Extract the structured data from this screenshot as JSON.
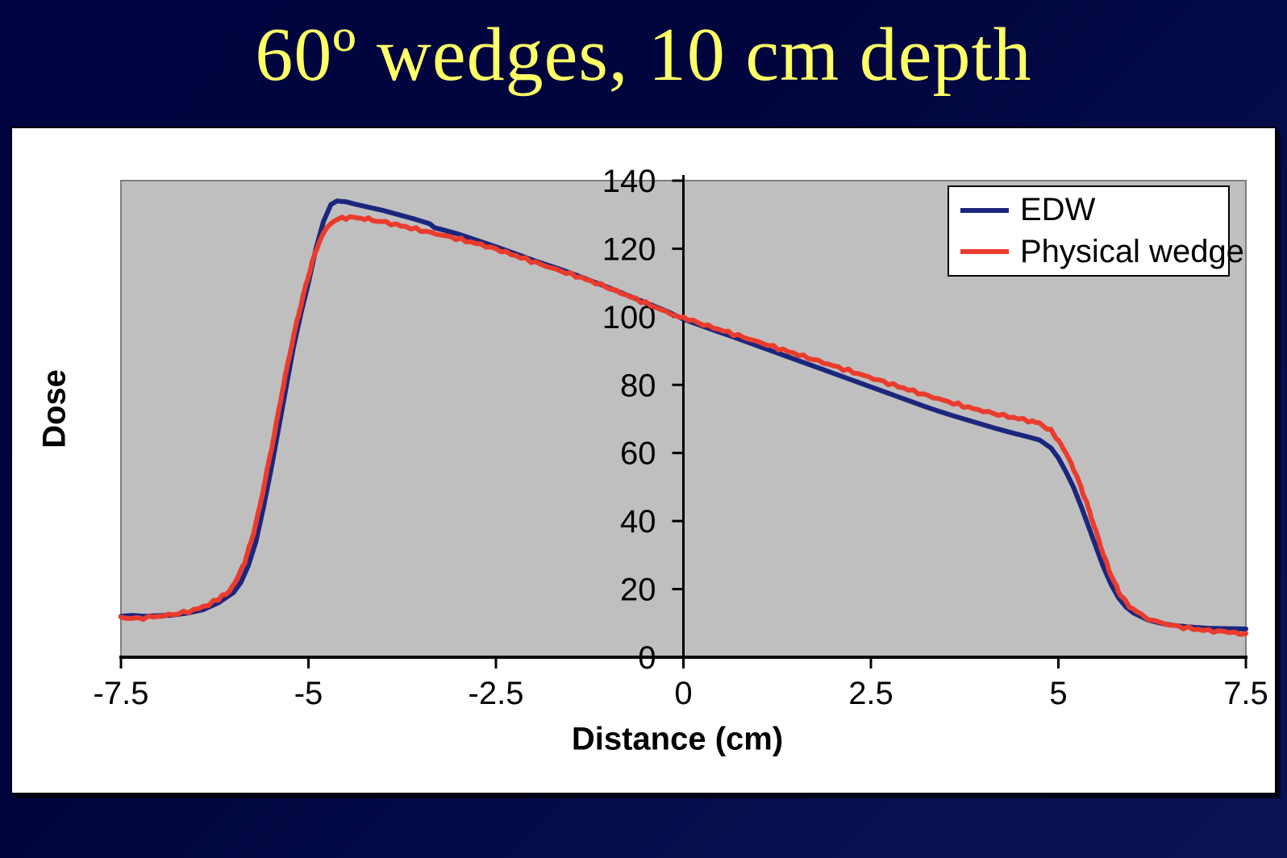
{
  "slide": {
    "title": "60º wedges, 10 cm depth",
    "title_color": "#ffff66"
  },
  "chart_data": {
    "type": "line",
    "title": "",
    "xlabel": "Distance (cm)",
    "ylabel": "Dose",
    "xlim": [
      -7.5,
      7.5
    ],
    "ylim": [
      0,
      140
    ],
    "x_ticks": [
      -7.5,
      -5,
      -2.5,
      0,
      2.5,
      5,
      7.5
    ],
    "x_tick_labels": [
      "-7.5",
      "-5",
      "-2.5",
      "0",
      "2.5",
      "5",
      "7.5"
    ],
    "y_ticks": [
      0,
      20,
      40,
      60,
      80,
      100,
      120,
      140
    ],
    "y_tick_labels": [
      "0",
      "20",
      "40",
      "60",
      "80",
      "100",
      "120",
      "140"
    ],
    "grid": false,
    "plot_bg": "#bfbfbf",
    "plot_border": "#7e7e7e",
    "axis_color": "#000000",
    "legend_position": "top-right",
    "series": [
      {
        "name": "EDW",
        "color": "#1b267e",
        "points": [
          [
            -7.5,
            12
          ],
          [
            -7.35,
            12.3
          ],
          [
            -7.2,
            12
          ],
          [
            -7.0,
            12.2
          ],
          [
            -6.8,
            12.4
          ],
          [
            -6.6,
            13
          ],
          [
            -6.4,
            14
          ],
          [
            -6.2,
            16
          ],
          [
            -6.0,
            19
          ],
          [
            -5.9,
            22
          ],
          [
            -5.8,
            27
          ],
          [
            -5.7,
            34
          ],
          [
            -5.6,
            44
          ],
          [
            -5.5,
            55
          ],
          [
            -5.4,
            67
          ],
          [
            -5.3,
            79
          ],
          [
            -5.2,
            91
          ],
          [
            -5.1,
            101
          ],
          [
            -5.0,
            110
          ],
          [
            -4.9,
            120
          ],
          [
            -4.8,
            128
          ],
          [
            -4.7,
            133
          ],
          [
            -4.62,
            134
          ],
          [
            -4.5,
            133.8
          ],
          [
            -4.4,
            133.2
          ],
          [
            -4.2,
            132.2
          ],
          [
            -4.0,
            131.2
          ],
          [
            -3.8,
            130
          ],
          [
            -3.6,
            128.8
          ],
          [
            -3.45,
            127.8
          ],
          [
            -3.38,
            127.3
          ],
          [
            -3.32,
            126.2
          ],
          [
            -3.2,
            125.5
          ],
          [
            -3.0,
            124.3
          ],
          [
            -2.8,
            122.8
          ],
          [
            -2.6,
            121.3
          ],
          [
            -2.4,
            119.8
          ],
          [
            -2.2,
            118.2
          ],
          [
            -2.0,
            116.6
          ],
          [
            -1.8,
            115.1
          ],
          [
            -1.6,
            113.6
          ],
          [
            -1.4,
            112
          ],
          [
            -1.2,
            110.3
          ],
          [
            -1.0,
            108.6
          ],
          [
            -0.8,
            106.8
          ],
          [
            -0.6,
            105
          ],
          [
            -0.4,
            103.2
          ],
          [
            -0.2,
            101.4
          ],
          [
            0,
            99.3
          ],
          [
            0.2,
            97.7
          ],
          [
            0.4,
            96.1
          ],
          [
            0.6,
            94.6
          ],
          [
            0.8,
            93
          ],
          [
            1.0,
            91.4
          ],
          [
            1.2,
            89.8
          ],
          [
            1.4,
            88.2
          ],
          [
            1.6,
            86.6
          ],
          [
            1.8,
            85
          ],
          [
            2.0,
            83.4
          ],
          [
            2.2,
            81.8
          ],
          [
            2.4,
            80.2
          ],
          [
            2.6,
            78.6
          ],
          [
            2.8,
            77
          ],
          [
            3.0,
            75.4
          ],
          [
            3.2,
            73.8
          ],
          [
            3.4,
            72.3
          ],
          [
            3.6,
            70.9
          ],
          [
            3.8,
            69.6
          ],
          [
            4.0,
            68.3
          ],
          [
            4.2,
            67
          ],
          [
            4.4,
            65.8
          ],
          [
            4.6,
            64.7
          ],
          [
            4.75,
            63.8
          ],
          [
            4.9,
            61.5
          ],
          [
            5.0,
            58.5
          ],
          [
            5.1,
            54.5
          ],
          [
            5.2,
            50
          ],
          [
            5.3,
            44.5
          ],
          [
            5.4,
            38.5
          ],
          [
            5.5,
            32.5
          ],
          [
            5.6,
            26.5
          ],
          [
            5.7,
            21.5
          ],
          [
            5.8,
            17.5
          ],
          [
            5.9,
            14.8
          ],
          [
            6.0,
            13
          ],
          [
            6.2,
            10.9
          ],
          [
            6.4,
            9.8
          ],
          [
            6.6,
            9.2
          ],
          [
            6.8,
            8.8
          ],
          [
            7.0,
            8.5
          ],
          [
            7.2,
            8.4
          ],
          [
            7.5,
            8.3
          ]
        ]
      },
      {
        "name": "Physical wedge",
        "color": "#ea3c2d",
        "points": [
          [
            -7.5,
            11.3
          ],
          [
            -7.2,
            11.6
          ],
          [
            -7.0,
            12
          ],
          [
            -6.8,
            12.6
          ],
          [
            -6.6,
            13.4
          ],
          [
            -6.4,
            14.8
          ],
          [
            -6.2,
            17
          ],
          [
            -6.05,
            19.5
          ],
          [
            -5.95,
            23
          ],
          [
            -5.85,
            28
          ],
          [
            -5.75,
            35
          ],
          [
            -5.65,
            44
          ],
          [
            -5.55,
            55
          ],
          [
            -5.45,
            66
          ],
          [
            -5.35,
            78
          ],
          [
            -5.25,
            89
          ],
          [
            -5.15,
            99
          ],
          [
            -5.05,
            108
          ],
          [
            -4.95,
            116
          ],
          [
            -4.85,
            122.5
          ],
          [
            -4.75,
            126.5
          ],
          [
            -4.65,
            128.3
          ],
          [
            -4.55,
            129
          ],
          [
            -4.45,
            129.2
          ],
          [
            -4.35,
            129.1
          ],
          [
            -4.25,
            128.8
          ],
          [
            -4.1,
            128.3
          ],
          [
            -3.9,
            127.4
          ],
          [
            -3.7,
            126.4
          ],
          [
            -3.5,
            125.4
          ],
          [
            -3.3,
            124.4
          ],
          [
            -3.1,
            123.4
          ],
          [
            -2.9,
            122.3
          ],
          [
            -2.7,
            121.2
          ],
          [
            -2.5,
            119.9
          ],
          [
            -2.3,
            118.4
          ],
          [
            -2.1,
            116.9
          ],
          [
            -1.9,
            115.4
          ],
          [
            -1.7,
            113.9
          ],
          [
            -1.5,
            112.5
          ],
          [
            -1.3,
            111
          ],
          [
            -1.1,
            109.4
          ],
          [
            -0.9,
            107.6
          ],
          [
            -0.7,
            105.8
          ],
          [
            -0.5,
            104
          ],
          [
            -0.3,
            102.1
          ],
          [
            -0.1,
            100.3
          ],
          [
            0,
            99.8
          ],
          [
            0.2,
            98.2
          ],
          [
            0.4,
            96.8
          ],
          [
            0.6,
            95.4
          ],
          [
            0.8,
            94
          ],
          [
            1.0,
            92.6
          ],
          [
            1.2,
            91.2
          ],
          [
            1.4,
            89.8
          ],
          [
            1.6,
            88.4
          ],
          [
            1.8,
            87
          ],
          [
            2.0,
            85.6
          ],
          [
            2.2,
            84.2
          ],
          [
            2.4,
            82.8
          ],
          [
            2.6,
            81.4
          ],
          [
            2.8,
            80
          ],
          [
            3.0,
            78.6
          ],
          [
            3.2,
            77.2
          ],
          [
            3.4,
            75.9
          ],
          [
            3.6,
            74.6
          ],
          [
            3.8,
            73.4
          ],
          [
            4.0,
            72.3
          ],
          [
            4.2,
            71.3
          ],
          [
            4.4,
            70.4
          ],
          [
            4.6,
            69.5
          ],
          [
            4.75,
            68.7
          ],
          [
            4.9,
            66.5
          ],
          [
            5.0,
            63.8
          ],
          [
            5.1,
            60
          ],
          [
            5.2,
            55.5
          ],
          [
            5.3,
            50
          ],
          [
            5.4,
            43.8
          ],
          [
            5.5,
            37
          ],
          [
            5.6,
            30.2
          ],
          [
            5.7,
            24.2
          ],
          [
            5.8,
            19.5
          ],
          [
            5.9,
            16.2
          ],
          [
            6.0,
            14
          ],
          [
            6.2,
            11.3
          ],
          [
            6.4,
            9.9
          ],
          [
            6.6,
            9
          ],
          [
            6.8,
            8.3
          ],
          [
            7.0,
            7.8
          ],
          [
            7.2,
            7.5
          ],
          [
            7.5,
            7
          ]
        ]
      }
    ]
  },
  "legend": {
    "items": [
      "EDW",
      "Physical wedge"
    ]
  }
}
